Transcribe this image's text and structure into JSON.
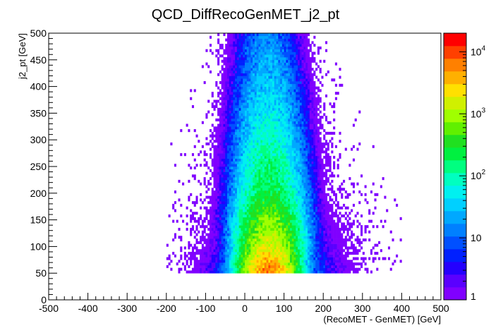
{
  "chart_data": {
    "type": "heatmap",
    "title": "QCD_DiffRecoGenMET_j2_pt",
    "xlabel": "(RecoMET - GenMET)  [GeV]",
    "ylabel": "j2_pt  [GeV]",
    "xlim": [
      -500,
      500
    ],
    "ylim": [
      0,
      500
    ],
    "x_ticks": [
      -500,
      -400,
      -300,
      -200,
      -100,
      0,
      100,
      200,
      300,
      400,
      500
    ],
    "y_ticks": [
      0,
      50,
      100,
      150,
      200,
      250,
      300,
      350,
      400,
      450,
      500
    ],
    "z_scale": "log",
    "zlim": [
      1,
      20000
    ],
    "z_ticks": [
      {
        "value": 1,
        "base": "1",
        "exp": ""
      },
      {
        "value": 10,
        "base": "10",
        "exp": ""
      },
      {
        "value": 100,
        "base": "10",
        "exp": "2"
      },
      {
        "value": 1000,
        "base": "10",
        "exp": "3"
      },
      {
        "value": 10000,
        "base": "10",
        "exp": "4"
      }
    ],
    "palette": [
      "#8000ff",
      "#5a00ff",
      "#2400ff",
      "#0020ff",
      "#0050ff",
      "#0080ff",
      "#00a8ff",
      "#00d0ff",
      "#00f0f0",
      "#00ffc0",
      "#00ff80",
      "#00f040",
      "#20e020",
      "#60f000",
      "#a0ff00",
      "#d0f000",
      "#ffe000",
      "#ffb000",
      "#ff8000",
      "#ff4000",
      "#ff0000"
    ],
    "bins": {
      "x_bin_width": 5,
      "y_bin_width": 5
    },
    "distribution": {
      "description_points": [
        {
          "y": 60,
          "x_center": 60,
          "x_sigma": 30,
          "peak_count": 6000
        },
        {
          "y": 100,
          "x_center": 62,
          "x_sigma": 34,
          "peak_count": 1800
        },
        {
          "y": 150,
          "x_center": 62,
          "x_sigma": 38,
          "peak_count": 700
        },
        {
          "y": 200,
          "x_center": 62,
          "x_sigma": 40,
          "peak_count": 260
        },
        {
          "y": 300,
          "x_center": 60,
          "x_sigma": 42,
          "peak_count": 90
        },
        {
          "y": 400,
          "x_center": 60,
          "x_sigma": 42,
          "peak_count": 35
        },
        {
          "y": 500,
          "x_center": 58,
          "x_sigma": 40,
          "peak_count": 15
        }
      ],
      "y_min": 50
    }
  }
}
